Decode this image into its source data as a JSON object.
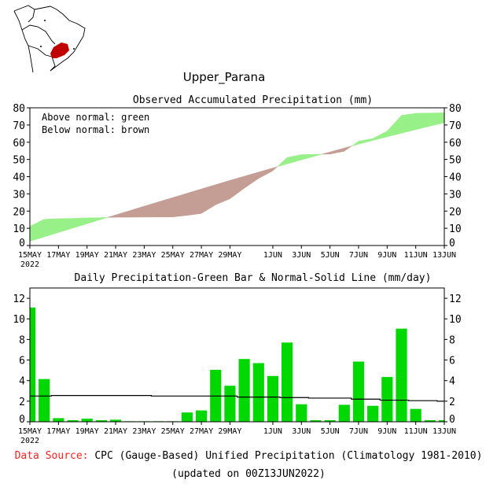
{
  "region_title": "Upper_Parana",
  "colors": {
    "above": "#98f088",
    "below": "#c49e94",
    "bar": "#00d800",
    "region": "#c00000",
    "source_label": "#ff2020"
  },
  "chart_data": [
    {
      "type": "area",
      "title": "Observed Accumulated Precipitation (mm)",
      "legend": [
        "Above normal: green",
        "Below normal: brown"
      ],
      "ylim": [
        0,
        80
      ],
      "yticks": [
        "0",
        "10",
        "20",
        "30",
        "40",
        "50",
        "60",
        "70",
        "80"
      ],
      "xtick_labels": [
        "15MAY",
        "17MAY",
        "19MAY",
        "21MAY",
        "23MAY",
        "25MAY",
        "27MAY",
        "29MAY",
        "1JUN",
        "3JUN",
        "5JUN",
        "7JUN",
        "9JUN",
        "11JUN",
        "13JUN"
      ],
      "xtick_days": [
        0,
        2,
        4,
        6,
        8,
        10,
        12,
        14,
        17,
        19,
        21,
        23,
        25,
        27,
        29
      ],
      "year_label": "2022",
      "series": [
        "observed accumulated (cumulative sum of daily)",
        "normal accumulated (cumulative sum of normal)"
      ]
    },
    {
      "type": "bar",
      "title": "Daily Precipitation-Green Bar & Normal-Solid Line (mm/day)",
      "ylim": [
        0,
        13
      ],
      "yticks": [
        "0",
        "2",
        "4",
        "6",
        "8",
        "10",
        "12"
      ],
      "xtick_labels": [
        "15MAY",
        "17MAY",
        "19MAY",
        "21MAY",
        "23MAY",
        "25MAY",
        "27MAY",
        "29MAY",
        "1JUN",
        "3JUN",
        "5JUN",
        "7JUN",
        "9JUN",
        "11JUN",
        "13JUN"
      ],
      "xtick_days": [
        0,
        2,
        4,
        6,
        8,
        10,
        12,
        14,
        17,
        19,
        21,
        23,
        25,
        27,
        29
      ],
      "year_label": "2022",
      "days": [
        "15MAY",
        "16MAY",
        "17MAY",
        "18MAY",
        "19MAY",
        "20MAY",
        "21MAY",
        "22MAY",
        "23MAY",
        "24MAY",
        "25MAY",
        "26MAY",
        "27MAY",
        "28MAY",
        "29MAY",
        "30MAY",
        "31MAY",
        "1JUN",
        "2JUN",
        "3JUN",
        "4JUN",
        "5JUN",
        "6JUN",
        "7JUN",
        "8JUN",
        "9JUN",
        "10JUN",
        "11JUN",
        "12JUN",
        "13JUN"
      ],
      "daily": [
        11.1,
        4.15,
        0.35,
        0.15,
        0.3,
        0.15,
        0.2,
        0.05,
        0.05,
        0.05,
        0.05,
        0.9,
        1.1,
        5.05,
        3.5,
        6.1,
        5.7,
        4.45,
        7.7,
        1.7,
        0.15,
        0.15,
        1.65,
        5.85,
        1.55,
        4.35,
        9.05,
        1.25,
        0.15,
        0.15
      ],
      "normal": [
        2.5,
        2.5,
        2.55,
        2.55,
        2.55,
        2.55,
        2.55,
        2.55,
        2.55,
        2.5,
        2.5,
        2.5,
        2.5,
        2.5,
        2.5,
        2.4,
        2.4,
        2.4,
        2.35,
        2.35,
        2.3,
        2.3,
        2.3,
        2.2,
        2.2,
        2.1,
        2.1,
        2.05,
        2.05,
        2.0
      ]
    }
  ],
  "footer": {
    "source_label": "Data Source:",
    "source_text": "CPC (Gauge-Based) Unified Precipitation (Climatology 1981-2010)",
    "updated": "(updated on 00Z13JUN2022)"
  }
}
